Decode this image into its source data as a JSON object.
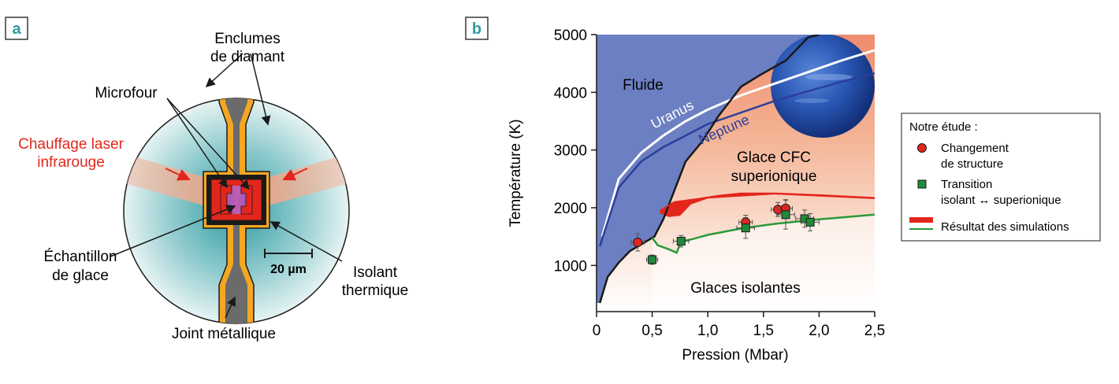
{
  "panel_a": {
    "letter": "a",
    "labels": {
      "anvils_line1": "Enclumes",
      "anvils_line2": "de diamant",
      "microfour": "Microfour",
      "laser_line1": "Chauffage laser",
      "laser_line2": "infrarouge",
      "sample_line1": "Échantillon",
      "sample_line2": "de glace",
      "scale": "20 µm",
      "insulator_line1": "Isolant",
      "insulator_line2": "thermique",
      "gasket": "Joint métallique"
    },
    "colors": {
      "laser_text": "#e3261c",
      "anvil_gold": "#f5a623",
      "gasket_gray": "#6b6b6b",
      "furnace_red": "#e3261c",
      "sample_purple": "#a14bb5",
      "teal": "#2e9aa0"
    }
  },
  "panel_b": {
    "letter": "b",
    "region_labels": {
      "fluid": "Fluide",
      "superionic_line1": "Glace CFC",
      "superionic_line2": "superionique",
      "insulating": "Glaces isolantes",
      "uranus": "Uranus",
      "neptune": "Neptune"
    },
    "legend": {
      "title": "Notre étude :",
      "item1_line1": "Changement",
      "item1_line2": "de structure",
      "item2_line1": "Transition",
      "item2_line2": "isolant ↔ superionique",
      "item3": "Résultat des simulations"
    },
    "colors": {
      "fluid": "#6c7fc2",
      "superionic": "#ef8c6e",
      "uranus_line": "#ffffff",
      "neptune_line": "#2b3f9a",
      "structure_point": "#e3261c",
      "transition_point": "#1f8a3a",
      "transition_line": "#2a9a3a",
      "sim_red": "#e3261c"
    }
  },
  "chart_data": {
    "type": "scatter",
    "xlabel": "Pression (Mbar)",
    "ylabel": "Température (K)",
    "xlim": [
      0,
      2.5
    ],
    "ylim": [
      200,
      5000
    ],
    "xticks": [
      0,
      0.5,
      1.0,
      1.5,
      2.0,
      2.5
    ],
    "xtick_labels": [
      "0",
      "0,5",
      "1,0",
      "1,5",
      "2,0",
      "2,5"
    ],
    "yticks": [
      1000,
      2000,
      3000,
      4000,
      5000
    ],
    "ytick_labels": [
      "1000",
      "2000",
      "3000",
      "4000",
      "5000"
    ],
    "grid": false,
    "legend_position": "right",
    "series": [
      {
        "name": "Changement de structure",
        "x": [
          0.37,
          1.34,
          1.63,
          1.7
        ],
        "y": [
          1400,
          1750,
          1970,
          1990
        ],
        "xerr": [
          0.06,
          0.06,
          0.06,
          0.06
        ],
        "yerr": [
          150,
          120,
          120,
          150
        ]
      },
      {
        "name": "Transition isolant ↔ superionique",
        "x": [
          0.5,
          0.76,
          1.34,
          1.7,
          1.87,
          1.92
        ],
        "y": [
          1100,
          1420,
          1650,
          1880,
          1810,
          1750
        ],
        "xerr": [
          0.05,
          0.07,
          0.08,
          0.08,
          0.08,
          0.08
        ],
        "yerr": [
          80,
          100,
          180,
          250,
          150,
          150
        ]
      }
    ],
    "curves": {
      "melting": {
        "x": [
          0.03,
          0.1,
          0.2,
          0.3,
          0.45,
          0.52,
          0.6,
          0.7,
          0.8,
          0.95,
          1.1,
          1.3,
          1.47,
          1.7,
          1.9,
          2.0
        ],
        "y": [
          350,
          800,
          1050,
          1250,
          1420,
          1500,
          1800,
          2300,
          2800,
          3150,
          3600,
          4100,
          4300,
          4550,
          4950,
          5000
        ]
      },
      "superionic_boundary": {
        "x": [
          0.5,
          0.55,
          0.65,
          0.72,
          0.76,
          0.85,
          1.0,
          1.3,
          1.6,
          2.0,
          2.5
        ],
        "y": [
          1480,
          1350,
          1280,
          1220,
          1420,
          1450,
          1530,
          1640,
          1720,
          1800,
          1880
        ]
      },
      "uranus": {
        "x": [
          0.05,
          0.2,
          0.4,
          0.6,
          0.8,
          1.0,
          1.3,
          1.6,
          1.9,
          2.2,
          2.5
        ],
        "y": [
          1500,
          2500,
          2950,
          3250,
          3500,
          3700,
          3950,
          4150,
          4350,
          4550,
          4730
        ]
      },
      "neptune": {
        "x": [
          0.03,
          0.2,
          0.4,
          0.6,
          0.8,
          1.0,
          1.3,
          1.6,
          1.9,
          2.2,
          2.5
        ],
        "y": [
          1330,
          2350,
          2800,
          3050,
          3250,
          3450,
          3650,
          3850,
          4020,
          4180,
          4330
        ]
      },
      "simulation_red": {
        "x": [
          0.57,
          0.7,
          0.9,
          1.1,
          1.3,
          1.6,
          2.0,
          2.5
        ],
        "y": [
          1950,
          2100,
          2150,
          2210,
          2250,
          2250,
          2220,
          2170
        ]
      },
      "simulation_band_low": {
        "x": [
          0.57,
          0.65,
          0.75,
          0.85
        ],
        "y": [
          1900,
          1840,
          1860,
          2060
        ]
      }
    }
  }
}
